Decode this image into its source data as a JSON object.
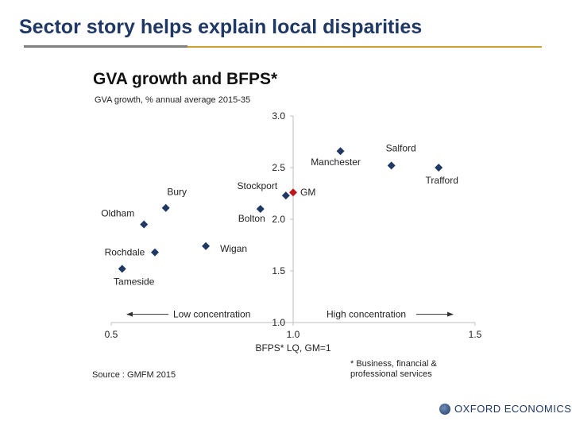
{
  "slide": {
    "title": "Sector story helps explain local disparities",
    "logo_text": "OXFORD ECONOMICS"
  },
  "chart_data": {
    "type": "scatter",
    "title": "GVA growth and BFPS*",
    "subtitle": "GVA growth, % annual average 2015-35",
    "xlabel": "BFPS* LQ, GM=1",
    "xlim": [
      0.5,
      1.5
    ],
    "ylim": [
      1.0,
      3.0
    ],
    "xticks": [
      "0.5",
      "1.0",
      "1.5"
    ],
    "yticks": [
      "1.0",
      "1.5",
      "2.0",
      "2.5",
      "3.0"
    ],
    "grid": false,
    "points": [
      {
        "label": "Salford",
        "x": 1.27,
        "y": 2.52,
        "color": "#1f3864"
      },
      {
        "label": "Manchester",
        "x": 1.13,
        "y": 2.66,
        "color": "#1f3864"
      },
      {
        "label": "Trafford",
        "x": 1.4,
        "y": 2.5,
        "color": "#1f3864"
      },
      {
        "label": "Stockport",
        "x": 0.98,
        "y": 2.23,
        "color": "#1f3864"
      },
      {
        "label": "GM",
        "x": 1.0,
        "y": 2.26,
        "color": "#c0151b"
      },
      {
        "label": "Bury",
        "x": 0.65,
        "y": 2.11,
        "color": "#1f3864"
      },
      {
        "label": "Bolton",
        "x": 0.91,
        "y": 2.1,
        "color": "#1f3864"
      },
      {
        "label": "Oldham",
        "x": 0.59,
        "y": 1.95,
        "color": "#1f3864"
      },
      {
        "label": "Wigan",
        "x": 0.76,
        "y": 1.74,
        "color": "#1f3864"
      },
      {
        "label": "Rochdale",
        "x": 0.62,
        "y": 1.68,
        "color": "#1f3864"
      },
      {
        "label": "Tameside",
        "x": 0.53,
        "y": 1.52,
        "color": "#1f3864"
      }
    ],
    "annotations": {
      "low": "Low concentration",
      "high": "High concentration"
    },
    "source": "Source : GMFM 2015",
    "footnote": "* Business, financial & professional services"
  }
}
